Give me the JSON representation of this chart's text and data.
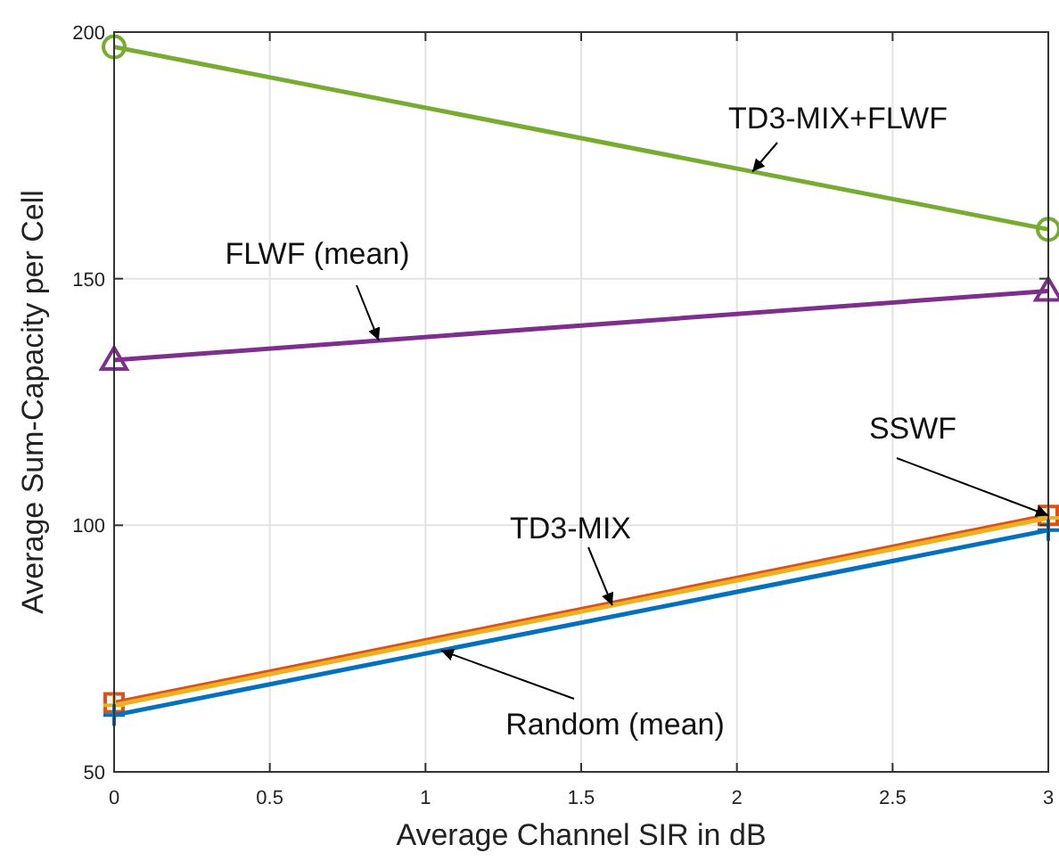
{
  "chart_data": {
    "type": "line",
    "xlabel": "Average Channel SIR in dB",
    "ylabel": "Average Sum-Capacity per Cell",
    "x": [
      0,
      3
    ],
    "xlim": [
      0,
      3
    ],
    "xticks": [
      0,
      0.5,
      1,
      1.5,
      2,
      2.5,
      3
    ],
    "ylim": [
      50,
      200
    ],
    "yticks": [
      50,
      100,
      150,
      200
    ],
    "grid": true,
    "line_style": "solid",
    "series": [
      {
        "name": "TD3-MIX+FLWF",
        "color": "#77ac30",
        "marker": "circle",
        "values": [
          197,
          160
        ]
      },
      {
        "name": "FLWF (mean)",
        "color": "#7e2f8e",
        "marker": "triangle",
        "values": [
          133.5,
          147.5
        ]
      },
      {
        "name": "SSWF",
        "color": "#d95319",
        "marker": "square",
        "values": [
          64,
          102
        ]
      },
      {
        "name": "TD3-MIX",
        "color": "#edb120",
        "marker": "cross",
        "values": [
          63.5,
          101.5
        ]
      },
      {
        "name": "Random (mean)",
        "color": "#0072bd",
        "marker": "cross",
        "values": [
          61.5,
          99
        ]
      }
    ]
  }
}
